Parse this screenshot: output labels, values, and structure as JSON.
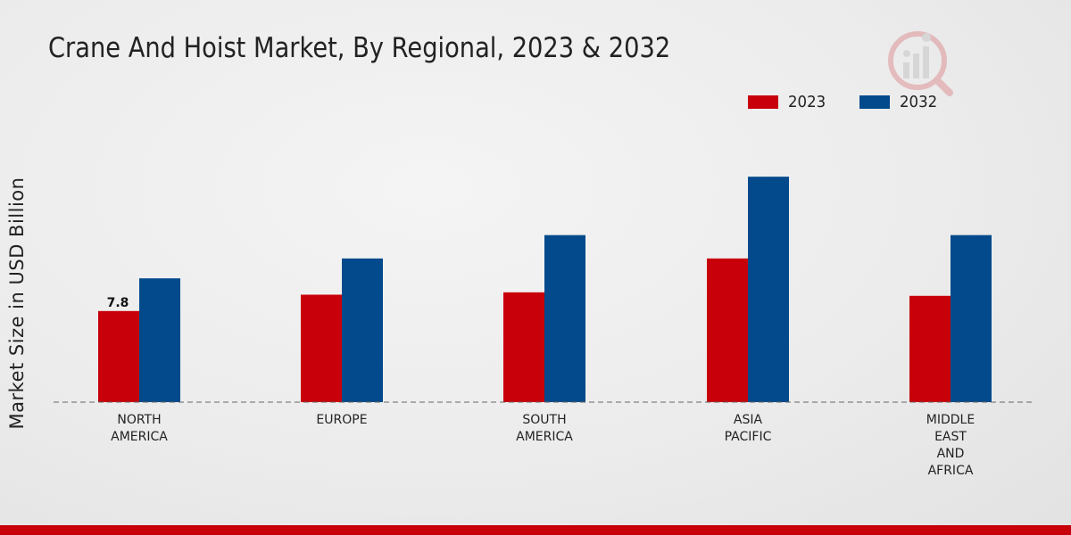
{
  "title": "Crane And Hoist Market, By Regional, 2023 & 2032",
  "colors": {
    "series_2023": "#c8000a",
    "series_2032": "#024a8c",
    "axis": "#666666"
  },
  "chart_data": {
    "type": "bar",
    "title": "Crane And Hoist Market, By Regional, 2023 & 2032",
    "xlabel": "",
    "ylabel": "Market Size in USD Billion",
    "ylim": [
      0,
      20
    ],
    "grid": false,
    "legend_position": "top-right",
    "categories": [
      [
        "NORTH",
        "AMERICA"
      ],
      [
        "EUROPE"
      ],
      [
        "SOUTH",
        "AMERICA"
      ],
      [
        "ASIA",
        "PACIFIC"
      ],
      [
        "MIDDLE",
        "EAST",
        "AND",
        "AFRICA"
      ]
    ],
    "series": [
      {
        "name": "2023",
        "values": [
          7.8,
          9.2,
          9.4,
          12.3,
          9.1
        ]
      },
      {
        "name": "2032",
        "values": [
          10.6,
          12.3,
          14.3,
          19.3,
          14.3
        ]
      }
    ],
    "data_labels": [
      {
        "series": 0,
        "index": 0,
        "text": "7.8"
      }
    ]
  }
}
